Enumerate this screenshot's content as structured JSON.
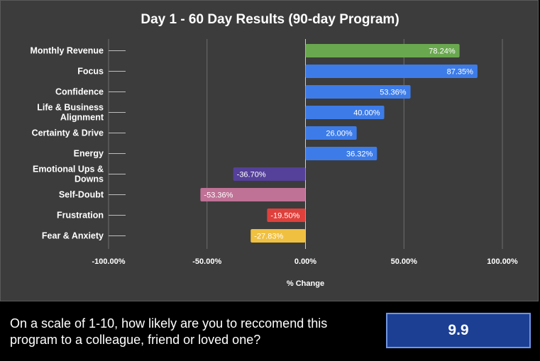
{
  "colors": {
    "panel_bg": "#3c3c3c",
    "grid": "#6e6e6e",
    "zero_line": "#cfcfcf",
    "text": "#ffffff",
    "score_bg": "#1c3f94",
    "score_border": "#6f95e4"
  },
  "chart_data": {
    "type": "bar",
    "orientation": "horizontal",
    "title": "Day 1 - 60 Day Results (90-day Program)",
    "xlabel": "% Change",
    "ylabel": "",
    "xlim": [
      -100,
      100
    ],
    "x_ticks": [
      -100,
      -50,
      0,
      50,
      100
    ],
    "x_tick_labels": [
      "-100.00%",
      "-50.00%",
      "0.00%",
      "50.00%",
      "100.00%"
    ],
    "grid": true,
    "legend": "none",
    "categories": [
      [
        "Monthly Revenue"
      ],
      [
        "Focus"
      ],
      [
        "Confidence"
      ],
      [
        "Life & Business",
        "Alignment"
      ],
      [
        "Certainty & Drive"
      ],
      [
        "Energy"
      ],
      [
        "Emotional Ups &",
        "Downs"
      ],
      [
        "Self-Doubt"
      ],
      [
        "Frustration"
      ],
      [
        "Fear & Anxiety"
      ]
    ],
    "values": [
      78.24,
      87.35,
      53.36,
      40.0,
      26.0,
      36.32,
      -36.7,
      -53.36,
      -19.5,
      -27.83
    ],
    "data_labels": [
      "78.24%",
      "87.35%",
      "53.36%",
      "40.00%",
      "26.00%",
      "36.32%",
      "-36.70%",
      "-53.36%",
      "-19.50%",
      "-27.83%"
    ],
    "bar_colors": [
      "#6aa84f",
      "#3d7ce8",
      "#3d7ce8",
      "#3d7ce8",
      "#3d7ce8",
      "#3d7ce8",
      "#55409a",
      "#c07196",
      "#e0403b",
      "#f0c040"
    ]
  },
  "survey": {
    "question": "On a scale of 1-10, how likely are you to reccomend this program to a colleague, friend or loved one?",
    "score": "9.9"
  }
}
